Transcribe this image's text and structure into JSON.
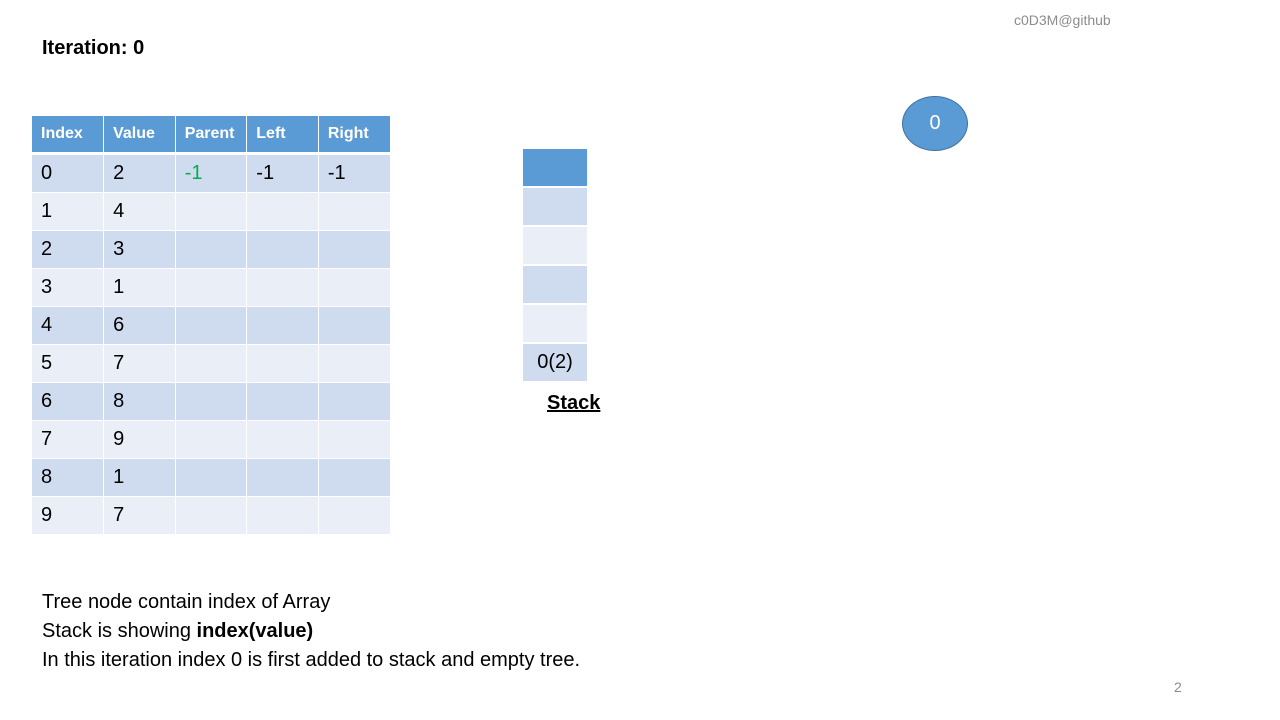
{
  "watermark": "c0D3M@github",
  "iteration_label": "Iteration: 0",
  "table": {
    "headers": [
      "Index",
      "Value",
      "Parent",
      "Left",
      "Right"
    ],
    "rows": [
      [
        "0",
        "2",
        "-1",
        "-1",
        "-1"
      ],
      [
        "1",
        "4",
        "",
        "",
        ""
      ],
      [
        "2",
        "3",
        "",
        "",
        ""
      ],
      [
        "3",
        "1",
        "",
        "",
        ""
      ],
      [
        "4",
        "6",
        "",
        "",
        ""
      ],
      [
        "5",
        "7",
        "",
        "",
        ""
      ],
      [
        "6",
        "8",
        "",
        "",
        ""
      ],
      [
        "7",
        "9",
        "",
        "",
        ""
      ],
      [
        "8",
        "1",
        "",
        "",
        ""
      ],
      [
        "9",
        "7",
        "",
        "",
        ""
      ]
    ],
    "highlight_color": "#00b050"
  },
  "stack": {
    "cells": [
      "",
      "",
      "",
      "",
      "",
      "0(2)"
    ],
    "label": "Stack"
  },
  "tree": {
    "root_label": "0"
  },
  "notes": {
    "line1": "Tree  node contain index of Array",
    "line2_prefix": "Stack is showing ",
    "line2_bold": "index(value)",
    "line3": "In this iteration index 0 is first added to stack and empty tree."
  },
  "page_number": "2",
  "colors": {
    "accent": "#5b9bd5",
    "row_dark": "#cfdbee",
    "row_light": "#e9eef7"
  }
}
